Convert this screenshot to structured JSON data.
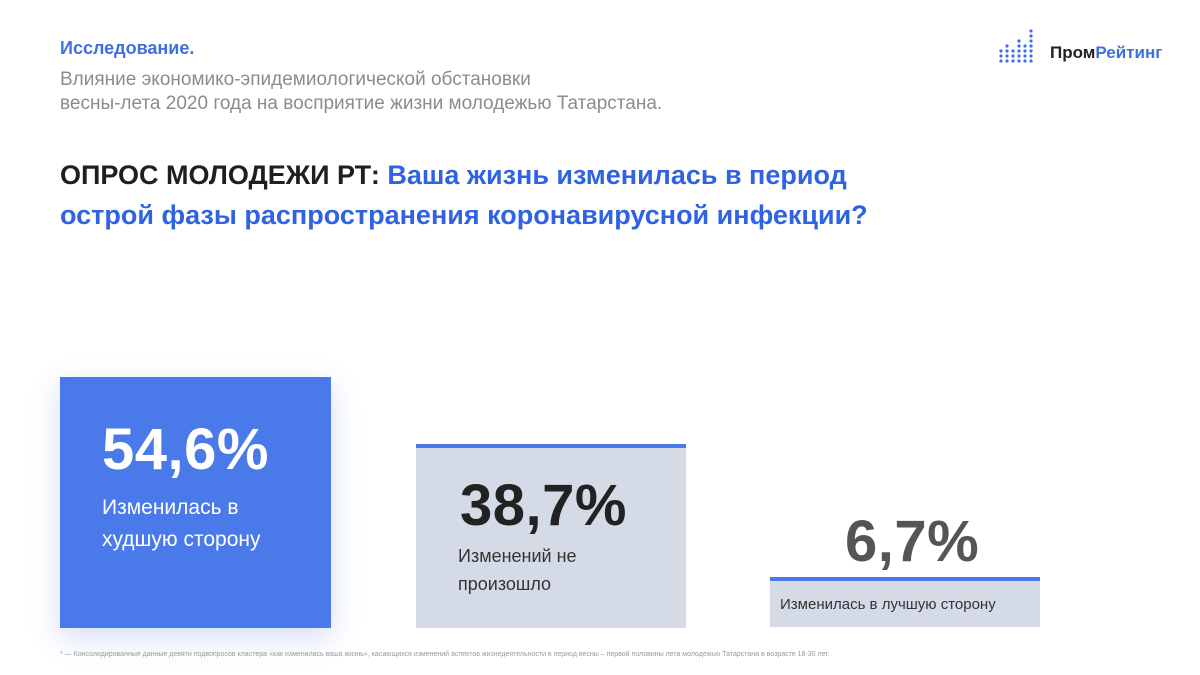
{
  "header": {
    "kicker": "Исследование.",
    "subtitle_line1": "Влияние экономико-эпидемиологической обстановки",
    "subtitle_line2": "весны-лета 2020 года на восприятие жизни молодежью Татарстана."
  },
  "logo": {
    "part1": "Пром",
    "part2": "Рейтинг",
    "accent_color": "#3f6fe0"
  },
  "question": {
    "lead": "ОПРОС МОЛОДЕЖИ РТ:",
    "text_line1": "Ваша жизнь изменилась в период",
    "text_line2": "острой фазы распространения коронавирусной инфекции?"
  },
  "chart_data": {
    "type": "bar",
    "title": "ОПРОС МОЛОДЕЖИ РТ: Ваша жизнь изменилась в период острой фазы распространения коронавирусной инфекции?",
    "categories": [
      "Изменилась в худшую сторону",
      "Изменений не произошло",
      "Изменилась в лучшую сторону"
    ],
    "values": [
      54.6,
      38.7,
      6.7
    ],
    "value_labels": [
      "54,6%",
      "38,7%",
      "6,7%"
    ],
    "label_lines": [
      [
        "Изменилась в",
        "худшую сторону"
      ],
      [
        "Изменений не",
        "произошло"
      ],
      [
        "Изменилась в лучшую сторону"
      ]
    ],
    "unit": "%",
    "colors": {
      "primary": "#4a7ae9",
      "secondary": "#d4dbe6"
    },
    "grid": false,
    "legend": "none"
  },
  "footnote": "* — Консолидированные данные девяти подвопросов кластера «как изменилась ваша жизнь», касающихся изменений аспектов жизнедеятельности в период весны – первой половины лета молодежью Татарстана в возрасте 18-30 лет."
}
